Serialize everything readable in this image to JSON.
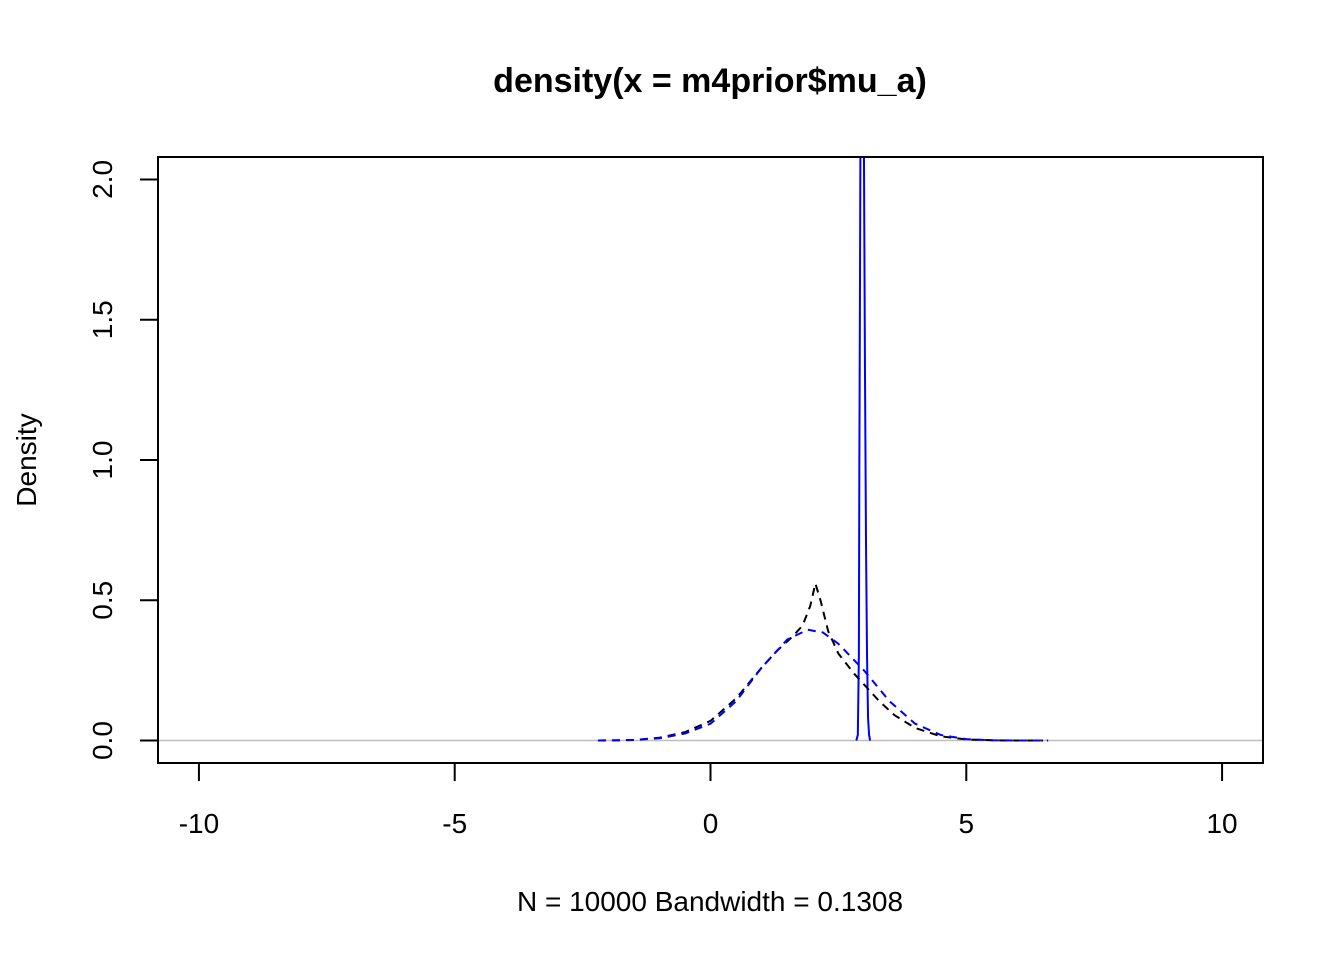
{
  "chart_data": {
    "type": "line",
    "title": "density(x = m4prior$mu_a)",
    "xlabel": "N = 10000   Bandwidth = 0.1308",
    "ylabel": "Density",
    "xlim": [
      -10.8,
      10.8
    ],
    "ylim": [
      -0.08,
      2.08
    ],
    "x_ticks": [
      -10,
      -5,
      0,
      5,
      10
    ],
    "y_ticks": [
      0.0,
      0.5,
      1.0,
      1.5,
      2.0
    ],
    "x_tick_labels": [
      "-10",
      "-5",
      "0",
      "5",
      "10"
    ],
    "y_tick_labels": [
      "0.0",
      "0.5",
      "1.0",
      "1.5",
      "2.0"
    ],
    "baseline": {
      "y": 0,
      "color": "#bebebe"
    },
    "grid": false,
    "series": [
      {
        "color": "#0000ff",
        "dash": "solid",
        "x": [
          2.85,
          2.88,
          2.9,
          2.91,
          2.92,
          2.93,
          2.935,
          2.95,
          2.96,
          2.98,
          3.0,
          3.02,
          3.04,
          3.06,
          3.08,
          3.1,
          3.12
        ],
        "y": [
          0.0,
          0.02,
          0.3,
          1.0,
          1.5,
          2.08,
          2.08,
          2.08,
          2.08,
          2.08,
          2.08,
          1.3,
          0.7,
          0.3,
          0.08,
          0.02,
          0.0
        ]
      },
      {
        "color": "#000000",
        "dash": "dashed",
        "x": [
          -2.2,
          -1.5,
          -1.0,
          -0.5,
          0.0,
          0.5,
          1.0,
          1.3,
          1.6,
          1.8,
          1.95,
          2.05,
          2.15,
          2.3,
          2.5,
          2.8,
          3.0,
          3.3,
          3.6,
          4.0,
          4.5,
          5.0,
          5.5,
          6.0,
          6.5
        ],
        "y": [
          0.0,
          0.002,
          0.01,
          0.03,
          0.07,
          0.15,
          0.26,
          0.32,
          0.37,
          0.41,
          0.48,
          0.56,
          0.5,
          0.39,
          0.31,
          0.24,
          0.2,
          0.14,
          0.09,
          0.045,
          0.015,
          0.004,
          0.001,
          0.0,
          0.0
        ]
      },
      {
        "color": "#0000ff",
        "dash": "dashed",
        "x": [
          -2.2,
          -1.5,
          -1.0,
          -0.5,
          0.0,
          0.5,
          1.0,
          1.5,
          1.9,
          2.2,
          2.5,
          3.0,
          3.5,
          4.0,
          4.5,
          5.0,
          5.5,
          6.0,
          6.6
        ],
        "y": [
          0.0,
          0.002,
          0.008,
          0.025,
          0.06,
          0.14,
          0.26,
          0.36,
          0.395,
          0.385,
          0.345,
          0.25,
          0.14,
          0.06,
          0.02,
          0.005,
          0.001,
          0.0,
          0.0
        ]
      }
    ]
  }
}
